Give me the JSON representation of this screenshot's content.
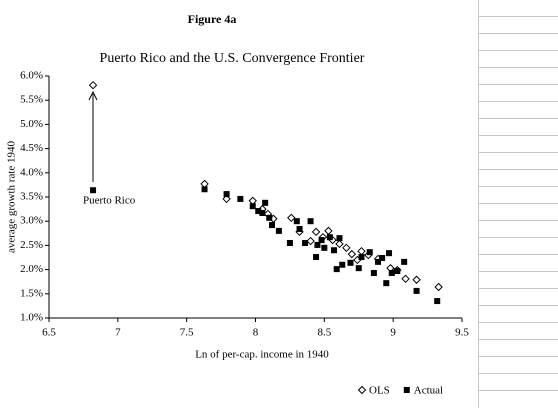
{
  "heading": "Figure 4a",
  "chart_data": {
    "type": "scatter",
    "title": "Puerto Rico and the U.S. Convergence Frontier",
    "xlabel": "Ln of per-cap. income in 1940",
    "ylabel": "average growth rate 1940",
    "annotation": "Puerto Rico",
    "xlim": [
      6.5,
      9.5
    ],
    "xticks": [
      6.5,
      7,
      7.5,
      8,
      8.5,
      9,
      9.5
    ],
    "ylim": [
      1,
      6
    ],
    "yticks": [
      {
        "value": 1,
        "label": "1.0%"
      },
      {
        "value": 1.5,
        "label": "1.5%"
      },
      {
        "value": 2,
        "label": "2.0%"
      },
      {
        "value": 2.5,
        "label": "2.5%"
      },
      {
        "value": 3,
        "label": "3.0%"
      },
      {
        "value": 3.5,
        "label": "3.5%"
      },
      {
        "value": 4,
        "label": "4.0%"
      },
      {
        "value": 4.5,
        "label": "4.5%"
      },
      {
        "value": 5,
        "label": "5.0%"
      },
      {
        "value": 5.5,
        "label": "5.5%"
      },
      {
        "value": 6,
        "label": "6.0%"
      }
    ],
    "series": [
      {
        "name": "OLS",
        "marker": "diamond-open",
        "color": "#000000",
        "x": [
          6.82,
          7.63,
          7.79,
          7.98,
          8.05,
          8.09,
          8.13,
          8.26,
          8.32,
          8.4,
          8.44,
          8.49,
          8.53,
          8.56,
          8.61,
          8.66,
          8.7,
          8.74,
          8.77,
          8.82,
          8.89,
          8.98,
          9.03,
          9.09,
          9.17,
          9.33
        ],
        "values": [
          5.81,
          3.77,
          3.46,
          3.42,
          3.25,
          3.15,
          3.05,
          3.07,
          2.78,
          2.59,
          2.78,
          2.67,
          2.8,
          2.61,
          2.53,
          2.45,
          2.32,
          2.2,
          2.38,
          2.3,
          2.22,
          2.03,
          1.99,
          1.81,
          1.79,
          1.64
        ]
      },
      {
        "name": "Actual",
        "marker": "square",
        "color": "#000000",
        "x": [
          6.82,
          7.63,
          7.79,
          7.89,
          7.98,
          8.02,
          8.07,
          8.05,
          8.1,
          8.12,
          8.17,
          8.25,
          8.3,
          8.32,
          8.36,
          8.4,
          8.44,
          8.45,
          8.48,
          8.5,
          8.54,
          8.57,
          8.59,
          8.61,
          8.63,
          8.69,
          8.75,
          8.77,
          8.83,
          8.86,
          8.89,
          8.92,
          8.95,
          8.97,
          8.99,
          9.03,
          9.08,
          9.17,
          9.32
        ],
        "values": [
          3.64,
          3.66,
          3.56,
          3.46,
          3.31,
          3.21,
          3.38,
          3.17,
          3.07,
          2.92,
          2.8,
          2.55,
          3.0,
          2.84,
          2.55,
          3.0,
          2.26,
          2.51,
          2.61,
          2.45,
          2.67,
          2.4,
          2.01,
          2.65,
          2.1,
          2.14,
          2.03,
          2.26,
          2.36,
          1.93,
          2.16,
          2.24,
          1.72,
          2.34,
          1.93,
          1.97,
          2.16,
          1.56,
          1.35
        ]
      }
    ]
  }
}
